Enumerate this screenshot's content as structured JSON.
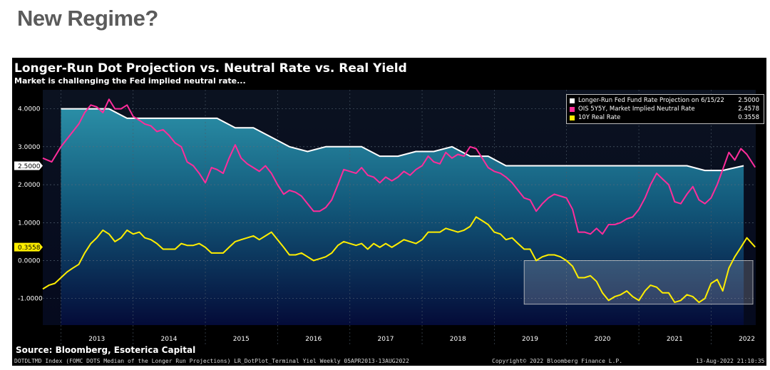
{
  "page": {
    "title": "New Regime?"
  },
  "chart_data": {
    "type": "line",
    "title": "Longer-Run Dot Projection vs. Neutral Rate vs. Real Yield",
    "subtitle": "Market is challenging the Fed implied neutral rate...",
    "xlabel": "",
    "ylabel": "",
    "xlim": [
      "2012-10-01",
      "2022-08-15"
    ],
    "ylim": [
      -1.7,
      4.5
    ],
    "yticks": [
      "4.0000",
      "3.0000",
      "2.0000",
      "1.0000",
      "0.0000",
      "-1.0000"
    ],
    "ytick_values": [
      4,
      3,
      2,
      1,
      0,
      -1
    ],
    "xticks": [
      "2013",
      "2014",
      "2015",
      "2016",
      "2017",
      "2018",
      "2019",
      "2020",
      "2021",
      "2022"
    ],
    "grid": true,
    "legend_position": "top-right",
    "series": [
      {
        "name": "Longer-Run Fed Fund Rate Projection on 6/15/22",
        "last_value": "2.5000",
        "color": "#ffffff",
        "fill": true,
        "points": [
          [
            "2013-01-01",
            4.0
          ],
          [
            "2013-06-01",
            4.0
          ],
          [
            "2013-09-01",
            4.0
          ],
          [
            "2013-12-01",
            3.75
          ],
          [
            "2014-06-01",
            3.75
          ],
          [
            "2014-12-01",
            3.75
          ],
          [
            "2015-03-01",
            3.75
          ],
          [
            "2015-06-01",
            3.5
          ],
          [
            "2015-09-01",
            3.5
          ],
          [
            "2015-12-01",
            3.25
          ],
          [
            "2016-03-01",
            3.0
          ],
          [
            "2016-06-01",
            2.875
          ],
          [
            "2016-09-01",
            3.0
          ],
          [
            "2017-03-01",
            3.0
          ],
          [
            "2017-06-01",
            2.75
          ],
          [
            "2017-09-01",
            2.75
          ],
          [
            "2017-12-01",
            2.875
          ],
          [
            "2018-03-01",
            2.875
          ],
          [
            "2018-06-01",
            3.0
          ],
          [
            "2018-09-01",
            2.75
          ],
          [
            "2018-12-01",
            2.75
          ],
          [
            "2019-03-01",
            2.5
          ],
          [
            "2019-06-01",
            2.5
          ],
          [
            "2021-06-01",
            2.5
          ],
          [
            "2021-09-01",
            2.5
          ],
          [
            "2021-12-01",
            2.375
          ],
          [
            "2022-03-01",
            2.375
          ],
          [
            "2022-06-15",
            2.5
          ]
        ]
      },
      {
        "name": "OIS 5Y5Y, Market Implied Neutral Rate",
        "last_value": "2.4578",
        "color": "#ff2d9b",
        "points": [
          [
            "2012-10-01",
            2.7
          ],
          [
            "2012-11-15",
            2.6
          ],
          [
            "2013-01-01",
            3.0
          ],
          [
            "2013-02-15",
            3.3
          ],
          [
            "2013-04-01",
            3.6
          ],
          [
            "2013-05-01",
            3.9
          ],
          [
            "2013-06-01",
            4.1
          ],
          [
            "2013-07-01",
            4.05
          ],
          [
            "2013-08-01",
            3.9
          ],
          [
            "2013-09-01",
            4.25
          ],
          [
            "2013-10-01",
            4.0
          ],
          [
            "2013-11-01",
            4.0
          ],
          [
            "2013-12-01",
            4.1
          ],
          [
            "2014-01-01",
            3.8
          ],
          [
            "2014-02-01",
            3.7
          ],
          [
            "2014-03-01",
            3.6
          ],
          [
            "2014-04-01",
            3.55
          ],
          [
            "2014-05-01",
            3.4
          ],
          [
            "2014-06-01",
            3.45
          ],
          [
            "2014-07-01",
            3.3
          ],
          [
            "2014-08-01",
            3.1
          ],
          [
            "2014-09-01",
            3.0
          ],
          [
            "2014-10-01",
            2.6
          ],
          [
            "2014-11-01",
            2.5
          ],
          [
            "2014-12-01",
            2.3
          ],
          [
            "2015-01-01",
            2.05
          ],
          [
            "2015-02-01",
            2.45
          ],
          [
            "2015-03-01",
            2.4
          ],
          [
            "2015-04-01",
            2.3
          ],
          [
            "2015-05-01",
            2.7
          ],
          [
            "2015-06-01",
            3.05
          ],
          [
            "2015-07-01",
            2.7
          ],
          [
            "2015-08-01",
            2.55
          ],
          [
            "2015-09-01",
            2.45
          ],
          [
            "2015-10-01",
            2.35
          ],
          [
            "2015-11-01",
            2.5
          ],
          [
            "2015-12-01",
            2.3
          ],
          [
            "2016-01-01",
            2.0
          ],
          [
            "2016-02-01",
            1.75
          ],
          [
            "2016-03-01",
            1.85
          ],
          [
            "2016-04-01",
            1.8
          ],
          [
            "2016-05-01",
            1.7
          ],
          [
            "2016-06-01",
            1.5
          ],
          [
            "2016-07-01",
            1.3
          ],
          [
            "2016-08-01",
            1.3
          ],
          [
            "2016-09-01",
            1.4
          ],
          [
            "2016-10-01",
            1.6
          ],
          [
            "2016-11-01",
            2.0
          ],
          [
            "2016-12-01",
            2.4
          ],
          [
            "2017-01-01",
            2.35
          ],
          [
            "2017-02-01",
            2.3
          ],
          [
            "2017-03-01",
            2.45
          ],
          [
            "2017-04-01",
            2.25
          ],
          [
            "2017-05-01",
            2.2
          ],
          [
            "2017-06-01",
            2.05
          ],
          [
            "2017-07-01",
            2.2
          ],
          [
            "2017-08-01",
            2.1
          ],
          [
            "2017-09-01",
            2.2
          ],
          [
            "2017-10-01",
            2.35
          ],
          [
            "2017-11-01",
            2.25
          ],
          [
            "2017-12-01",
            2.4
          ],
          [
            "2018-01-01",
            2.5
          ],
          [
            "2018-02-01",
            2.75
          ],
          [
            "2018-03-01",
            2.6
          ],
          [
            "2018-04-01",
            2.55
          ],
          [
            "2018-05-01",
            2.85
          ],
          [
            "2018-06-01",
            2.7
          ],
          [
            "2018-07-01",
            2.8
          ],
          [
            "2018-08-01",
            2.75
          ],
          [
            "2018-09-01",
            3.0
          ],
          [
            "2018-10-01",
            2.95
          ],
          [
            "2018-11-01",
            2.7
          ],
          [
            "2018-12-01",
            2.45
          ],
          [
            "2019-01-01",
            2.35
          ],
          [
            "2019-02-01",
            2.3
          ],
          [
            "2019-03-01",
            2.2
          ],
          [
            "2019-04-01",
            2.05
          ],
          [
            "2019-05-01",
            1.85
          ],
          [
            "2019-06-01",
            1.65
          ],
          [
            "2019-07-01",
            1.6
          ],
          [
            "2019-08-01",
            1.3
          ],
          [
            "2019-09-01",
            1.5
          ],
          [
            "2019-10-01",
            1.65
          ],
          [
            "2019-11-01",
            1.75
          ],
          [
            "2019-12-01",
            1.7
          ],
          [
            "2020-01-01",
            1.65
          ],
          [
            "2020-02-01",
            1.35
          ],
          [
            "2020-03-01",
            0.75
          ],
          [
            "2020-04-01",
            0.75
          ],
          [
            "2020-05-01",
            0.7
          ],
          [
            "2020-06-01",
            0.85
          ],
          [
            "2020-07-01",
            0.7
          ],
          [
            "2020-08-01",
            0.95
          ],
          [
            "2020-09-01",
            0.95
          ],
          [
            "2020-10-01",
            1.0
          ],
          [
            "2020-11-01",
            1.1
          ],
          [
            "2020-12-01",
            1.15
          ],
          [
            "2021-01-01",
            1.35
          ],
          [
            "2021-02-01",
            1.65
          ],
          [
            "2021-03-01",
            2.0
          ],
          [
            "2021-04-01",
            2.3
          ],
          [
            "2021-05-01",
            2.15
          ],
          [
            "2021-06-01",
            2.0
          ],
          [
            "2021-07-01",
            1.55
          ],
          [
            "2021-08-01",
            1.5
          ],
          [
            "2021-09-01",
            1.75
          ],
          [
            "2021-10-01",
            1.95
          ],
          [
            "2021-11-01",
            1.6
          ],
          [
            "2021-12-01",
            1.5
          ],
          [
            "2022-01-01",
            1.65
          ],
          [
            "2022-02-01",
            2.0
          ],
          [
            "2022-03-01",
            2.4
          ],
          [
            "2022-04-01",
            2.85
          ],
          [
            "2022-05-01",
            2.65
          ],
          [
            "2022-06-01",
            2.95
          ],
          [
            "2022-07-01",
            2.8
          ],
          [
            "2022-08-12",
            2.4578
          ]
        ]
      },
      {
        "name": "10Y Real Rate",
        "last_value": "0.3558",
        "color": "#ffee00",
        "points": [
          [
            "2012-10-01",
            -0.75
          ],
          [
            "2012-11-01",
            -0.65
          ],
          [
            "2012-12-01",
            -0.6
          ],
          [
            "2013-01-01",
            -0.45
          ],
          [
            "2013-02-01",
            -0.3
          ],
          [
            "2013-03-01",
            -0.2
          ],
          [
            "2013-04-01",
            -0.1
          ],
          [
            "2013-05-01",
            0.2
          ],
          [
            "2013-06-01",
            0.45
          ],
          [
            "2013-07-01",
            0.6
          ],
          [
            "2013-08-01",
            0.8
          ],
          [
            "2013-09-01",
            0.7
          ],
          [
            "2013-10-01",
            0.5
          ],
          [
            "2013-11-01",
            0.6
          ],
          [
            "2013-12-01",
            0.8
          ],
          [
            "2014-01-01",
            0.7
          ],
          [
            "2014-02-01",
            0.75
          ],
          [
            "2014-03-01",
            0.6
          ],
          [
            "2014-04-01",
            0.55
          ],
          [
            "2014-05-01",
            0.45
          ],
          [
            "2014-06-01",
            0.3
          ],
          [
            "2014-07-01",
            0.3
          ],
          [
            "2014-08-01",
            0.3
          ],
          [
            "2014-09-01",
            0.45
          ],
          [
            "2014-10-01",
            0.4
          ],
          [
            "2014-11-01",
            0.4
          ],
          [
            "2014-12-01",
            0.45
          ],
          [
            "2015-01-01",
            0.35
          ],
          [
            "2015-02-01",
            0.2
          ],
          [
            "2015-03-01",
            0.2
          ],
          [
            "2015-04-01",
            0.2
          ],
          [
            "2015-05-01",
            0.35
          ],
          [
            "2015-06-01",
            0.5
          ],
          [
            "2015-07-01",
            0.55
          ],
          [
            "2015-08-01",
            0.6
          ],
          [
            "2015-09-01",
            0.65
          ],
          [
            "2015-10-01",
            0.55
          ],
          [
            "2015-11-01",
            0.65
          ],
          [
            "2015-12-01",
            0.75
          ],
          [
            "2016-01-01",
            0.55
          ],
          [
            "2016-02-01",
            0.35
          ],
          [
            "2016-03-01",
            0.15
          ],
          [
            "2016-04-01",
            0.15
          ],
          [
            "2016-05-01",
            0.2
          ],
          [
            "2016-06-01",
            0.1
          ],
          [
            "2016-07-01",
            0.0
          ],
          [
            "2016-08-01",
            0.05
          ],
          [
            "2016-09-01",
            0.1
          ],
          [
            "2016-10-01",
            0.2
          ],
          [
            "2016-11-01",
            0.4
          ],
          [
            "2016-12-01",
            0.5
          ],
          [
            "2017-01-01",
            0.45
          ],
          [
            "2017-02-01",
            0.4
          ],
          [
            "2017-03-01",
            0.45
          ],
          [
            "2017-04-01",
            0.3
          ],
          [
            "2017-05-01",
            0.45
          ],
          [
            "2017-06-01",
            0.35
          ],
          [
            "2017-07-01",
            0.45
          ],
          [
            "2017-08-01",
            0.35
          ],
          [
            "2017-09-01",
            0.45
          ],
          [
            "2017-10-01",
            0.55
          ],
          [
            "2017-11-01",
            0.5
          ],
          [
            "2017-12-01",
            0.45
          ],
          [
            "2018-01-01",
            0.55
          ],
          [
            "2018-02-01",
            0.75
          ],
          [
            "2018-03-01",
            0.75
          ],
          [
            "2018-04-01",
            0.75
          ],
          [
            "2018-05-01",
            0.85
          ],
          [
            "2018-06-01",
            0.8
          ],
          [
            "2018-07-01",
            0.75
          ],
          [
            "2018-08-01",
            0.8
          ],
          [
            "2018-09-01",
            0.9
          ],
          [
            "2018-10-01",
            1.15
          ],
          [
            "2018-11-01",
            1.05
          ],
          [
            "2018-12-01",
            0.95
          ],
          [
            "2019-01-01",
            0.75
          ],
          [
            "2019-02-01",
            0.7
          ],
          [
            "2019-03-01",
            0.55
          ],
          [
            "2019-04-01",
            0.6
          ],
          [
            "2019-05-01",
            0.45
          ],
          [
            "2019-06-01",
            0.3
          ],
          [
            "2019-07-01",
            0.3
          ],
          [
            "2019-08-01",
            0.0
          ],
          [
            "2019-09-01",
            0.1
          ],
          [
            "2019-10-01",
            0.15
          ],
          [
            "2019-11-01",
            0.15
          ],
          [
            "2019-12-01",
            0.1
          ],
          [
            "2020-01-01",
            0.0
          ],
          [
            "2020-02-01",
            -0.15
          ],
          [
            "2020-03-01",
            -0.45
          ],
          [
            "2020-04-01",
            -0.45
          ],
          [
            "2020-05-01",
            -0.4
          ],
          [
            "2020-06-01",
            -0.55
          ],
          [
            "2020-07-01",
            -0.85
          ],
          [
            "2020-08-01",
            -1.05
          ],
          [
            "2020-09-01",
            -0.95
          ],
          [
            "2020-10-01",
            -0.9
          ],
          [
            "2020-11-01",
            -0.8
          ],
          [
            "2020-12-01",
            -0.95
          ],
          [
            "2021-01-01",
            -1.05
          ],
          [
            "2021-02-01",
            -0.8
          ],
          [
            "2021-03-01",
            -0.65
          ],
          [
            "2021-04-01",
            -0.7
          ],
          [
            "2021-05-01",
            -0.85
          ],
          [
            "2021-06-01",
            -0.85
          ],
          [
            "2021-07-01",
            -1.1
          ],
          [
            "2021-08-01",
            -1.05
          ],
          [
            "2021-09-01",
            -0.9
          ],
          [
            "2021-10-01",
            -0.95
          ],
          [
            "2021-11-01",
            -1.1
          ],
          [
            "2021-12-01",
            -1.0
          ],
          [
            "2022-01-01",
            -0.6
          ],
          [
            "2022-02-01",
            -0.5
          ],
          [
            "2022-03-01",
            -0.8
          ],
          [
            "2022-04-01",
            -0.2
          ],
          [
            "2022-05-01",
            0.1
          ],
          [
            "2022-06-01",
            0.35
          ],
          [
            "2022-07-01",
            0.6
          ],
          [
            "2022-08-12",
            0.3558
          ]
        ]
      }
    ],
    "source": "Source: Bloomberg, Esoterica Capital"
  },
  "footer": {
    "left": "DOTDLTMD Index (FOMC DOTS Median of the Longer Run Projections) LR_DotPlot_Terminal Yiel  Weekly 05APR2013-13AUG2022",
    "center": "Copyright© 2022 Bloomberg Finance L.P.",
    "right": "13-Aug-2022 21:10:35"
  }
}
